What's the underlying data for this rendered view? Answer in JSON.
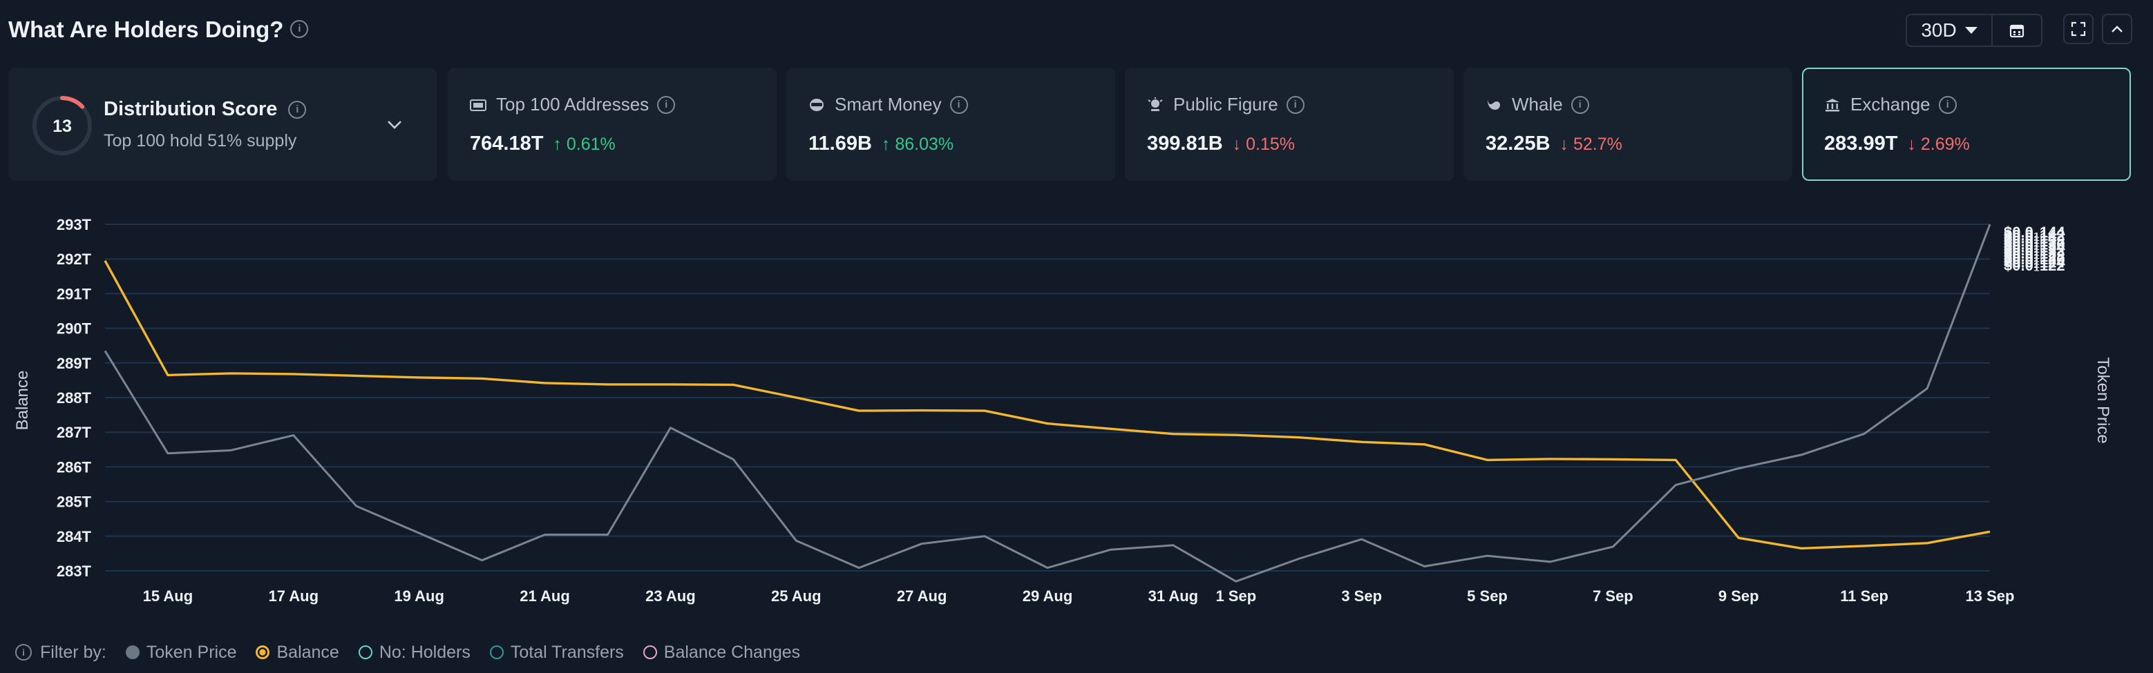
{
  "header": {
    "title": "What Are Holders Doing?",
    "period": "30D"
  },
  "cards": {
    "distribution": {
      "score": "13",
      "score_value": 13,
      "title": "Distribution Score",
      "subtitle": "Top 100 hold 51% supply"
    },
    "top100": {
      "label": "Top 100 Addresses",
      "value": "764.18T",
      "change": "0.61%",
      "direction": "up"
    },
    "smart": {
      "label": "Smart Money",
      "value": "11.69B",
      "change": "86.03%",
      "direction": "up"
    },
    "public": {
      "label": "Public Figure",
      "value": "399.81B",
      "change": "0.15%",
      "direction": "down"
    },
    "whale": {
      "label": "Whale",
      "value": "32.25B",
      "change": "52.7%",
      "direction": "down"
    },
    "exchange": {
      "label": "Exchange",
      "value": "283.99T",
      "change": "2.69%",
      "direction": "down"
    }
  },
  "legend": {
    "filter_label": "Filter by:",
    "items": [
      {
        "label": "Token Price",
        "color": "#6c7785",
        "style": "filled"
      },
      {
        "label": "Balance",
        "color": "#f2b630",
        "style": "selected"
      },
      {
        "label": "No: Holders",
        "color": "#5fd8cc",
        "style": "ring"
      },
      {
        "label": "Total Transfers",
        "color": "#2a9d9a",
        "style": "ring"
      },
      {
        "label": "Balance Changes",
        "color": "#e9a6c6",
        "style": "ring"
      }
    ]
  },
  "chart_data": {
    "type": "line",
    "ylabel": "Balance",
    "y2label": "Token Price",
    "y_ticks": [
      "293T",
      "292T",
      "291T",
      "290T",
      "289T",
      "288T",
      "287T",
      "286T",
      "285T",
      "284T",
      "283T"
    ],
    "y2_ticks": [
      "$0.0₁144",
      "$0.0₁142",
      "$0.0₁14",
      "$0.0₁138",
      "$0.0₁136",
      "$0.0₁134",
      "$0.0₁132",
      "$0.0₁13",
      "$0.0₁128",
      "$0.0₁126",
      "$0.0₁124",
      "$0.0₁122"
    ],
    "x_ticks": [
      "15 Aug",
      "17 Aug",
      "19 Aug",
      "21 Aug",
      "23 Aug",
      "25 Aug",
      "27 Aug",
      "29 Aug",
      "31 Aug",
      "1 Sep",
      "3 Sep",
      "5 Sep",
      "7 Sep",
      "9 Sep",
      "11 Sep",
      "13 Sep"
    ],
    "ylim": [
      283,
      293
    ],
    "y2lim": [
      0.01219,
      0.01449
    ],
    "x": [
      "14 Aug",
      "15 Aug",
      "16 Aug",
      "17 Aug",
      "18 Aug",
      "19 Aug",
      "20 Aug",
      "21 Aug",
      "22 Aug",
      "23 Aug",
      "24 Aug",
      "25 Aug",
      "26 Aug",
      "27 Aug",
      "28 Aug",
      "29 Aug",
      "30 Aug",
      "31 Aug",
      "1 Sep",
      "2 Sep",
      "3 Sep",
      "4 Sep",
      "5 Sep",
      "6 Sep",
      "7 Sep",
      "8 Sep",
      "9 Sep",
      "10 Sep",
      "11 Sep",
      "12 Sep",
      "13 Sep"
    ],
    "series": [
      {
        "name": "Balance",
        "axis": "left",
        "color": "#f2b630",
        "values": [
          291.95,
          288.65,
          288.7,
          288.68,
          288.63,
          288.58,
          288.55,
          288.42,
          288.38,
          288.38,
          288.37,
          288.0,
          287.62,
          287.63,
          287.62,
          287.25,
          287.1,
          286.95,
          286.92,
          286.85,
          286.72,
          286.65,
          286.2,
          286.23,
          286.22,
          286.2,
          283.95,
          283.65,
          283.72,
          283.8,
          284.13
        ]
      },
      {
        "name": "Token Price",
        "axis": "right",
        "color": "#7a8593",
        "values": [
          0.01365,
          0.01297,
          0.01299,
          0.01309,
          0.01262,
          0.01244,
          0.01226,
          0.01243,
          0.01243,
          0.01314,
          0.01293,
          0.01239,
          0.01221,
          0.01237,
          0.01242,
          0.01221,
          0.01233,
          0.01236,
          0.01212,
          0.01227,
          0.0124,
          0.01222,
          0.01229,
          0.01225,
          0.01235,
          0.01276,
          0.01287,
          0.01296,
          0.0131,
          0.0134,
          0.01449
        ]
      }
    ]
  }
}
